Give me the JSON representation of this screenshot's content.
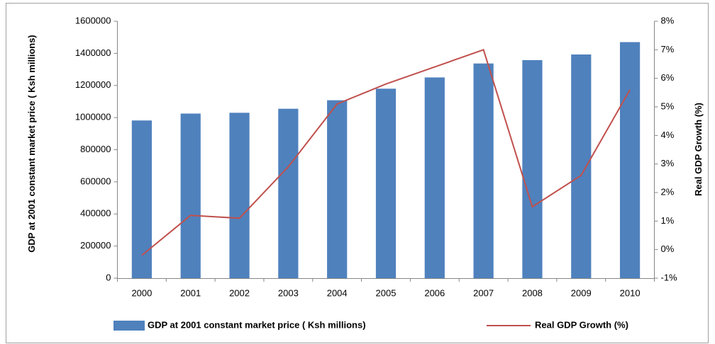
{
  "chart_data": {
    "type": "bar",
    "y_label": "GDP at 2001 constant market price ( Ksh millions)",
    "y2_label": "Real GDP Growth (%)",
    "categories": [
      "2000",
      "2001",
      "2002",
      "2003",
      "2004",
      "2005",
      "2006",
      "2007",
      "2008",
      "2009",
      "2010"
    ],
    "series": [
      {
        "name": "GDP at 2001 constant market price ( Ksh millions)",
        "type": "bar",
        "color": "#4f81bd",
        "values": [
          982000,
          1025000,
          1030000,
          1055000,
          1108000,
          1180000,
          1250000,
          1337000,
          1358000,
          1393000,
          1470000
        ]
      },
      {
        "name": "Real GDP Growth (%)",
        "type": "line",
        "axis": "y2",
        "color": "#c0504d",
        "values": [
          -0.2,
          1.2,
          1.1,
          2.9,
          5.1,
          5.8,
          6.4,
          7.0,
          1.5,
          2.6,
          5.6
        ]
      }
    ],
    "ylim": [
      0,
      1600000
    ],
    "yticks": [
      0,
      200000,
      400000,
      600000,
      800000,
      1000000,
      1200000,
      1400000,
      1600000
    ],
    "y2lim": [
      -1,
      8
    ],
    "y2ticks": [
      {
        "value": -1,
        "label": "-1%"
      },
      {
        "value": 0,
        "label": "0%"
      },
      {
        "value": 1,
        "label": "1%"
      },
      {
        "value": 2,
        "label": "2%"
      },
      {
        "value": 3,
        "label": "3%"
      },
      {
        "value": 4,
        "label": "4%"
      },
      {
        "value": 5,
        "label": "5%"
      },
      {
        "value": 6,
        "label": "6%"
      },
      {
        "value": 7,
        "label": "7%"
      },
      {
        "value": 8,
        "label": "8%"
      }
    ],
    "grid": false,
    "legend": "bottom"
  }
}
